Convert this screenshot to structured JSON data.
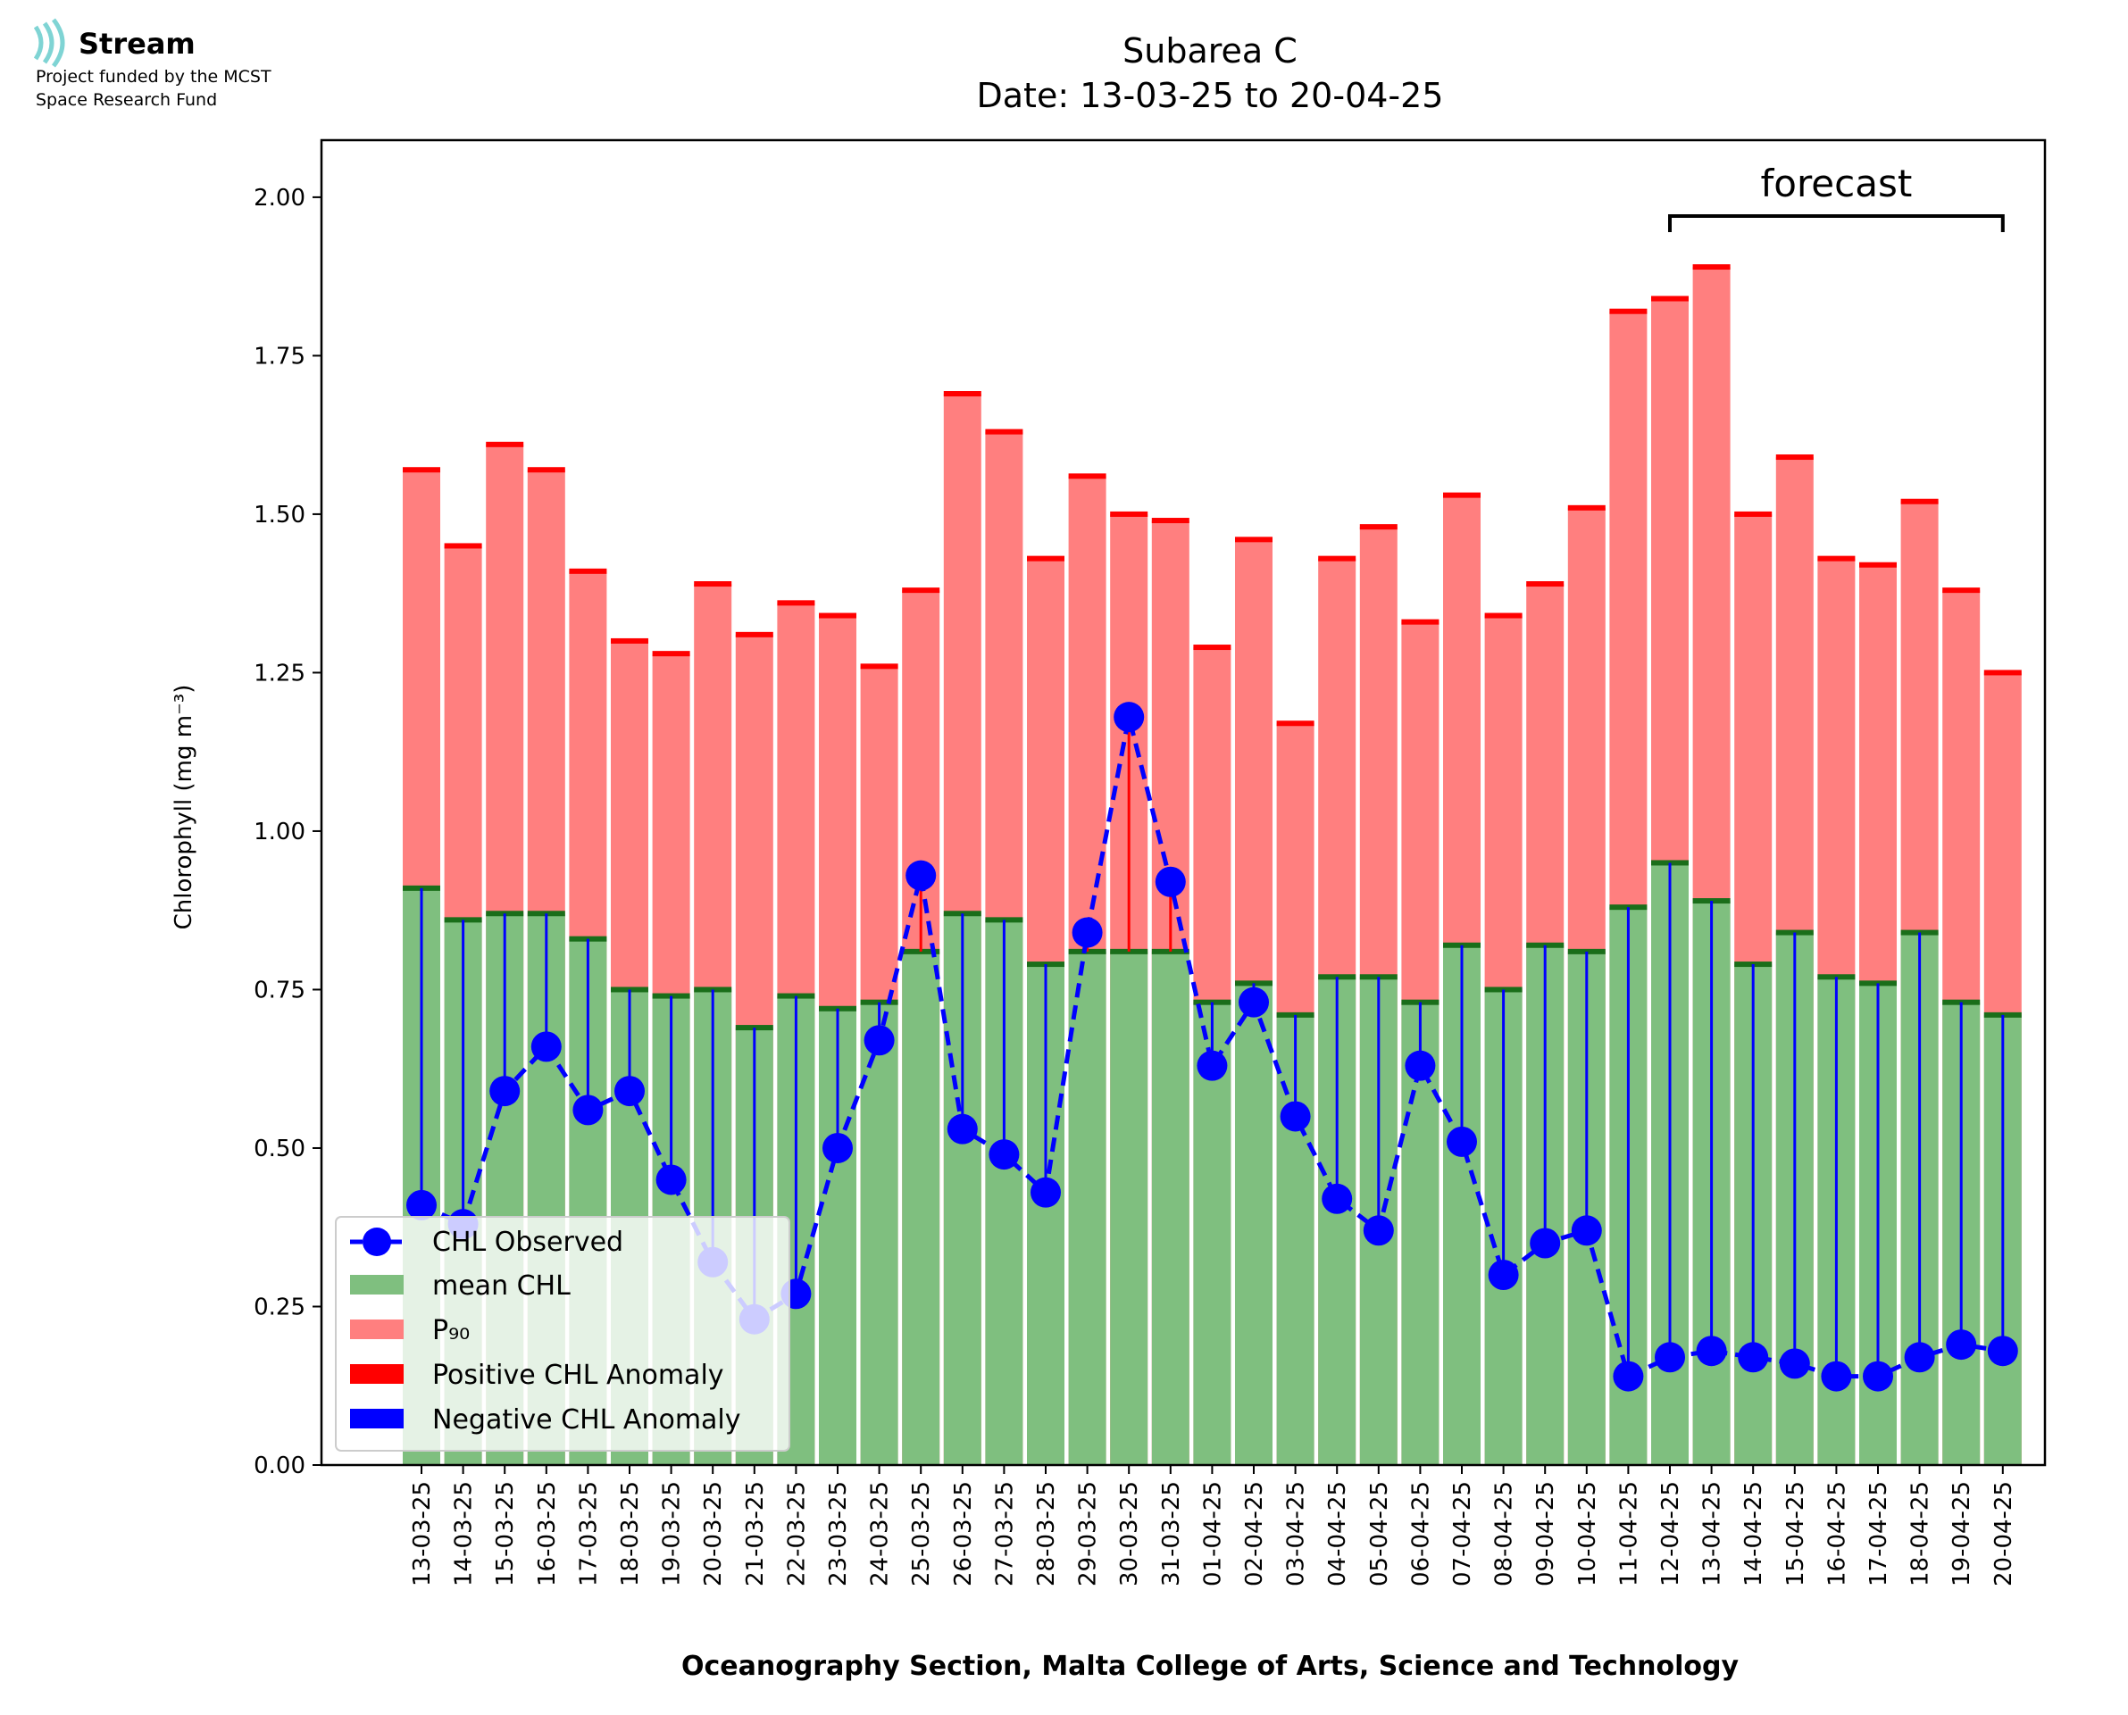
{
  "logo": {
    "name": "Stream",
    "line1": "Project funded by the MCST",
    "line2": "Space Research Fund"
  },
  "chart_data": {
    "type": "bar",
    "title": "Subarea C",
    "subtitle": "Date: 13-03-25 to 20-04-25",
    "xlabel": "Oceanography Section, Malta College of Arts, Science and Technology",
    "ylabel": "Chlorophyll (mg m⁻³)",
    "ylim": [
      0,
      2.09
    ],
    "yticks": [
      "0.00",
      "0.25",
      "0.50",
      "0.75",
      "1.00",
      "1.25",
      "1.50",
      "1.75",
      "2.00"
    ],
    "grid": false,
    "legend_placement": "lower-left",
    "annotation": "forecast",
    "forecast_start": "12-04-25",
    "forecast_end": "20-04-25",
    "categories": [
      "13-03-25",
      "14-03-25",
      "15-03-25",
      "16-03-25",
      "17-03-25",
      "18-03-25",
      "19-03-25",
      "20-03-25",
      "21-03-25",
      "22-03-25",
      "23-03-25",
      "24-03-25",
      "25-03-25",
      "26-03-25",
      "27-03-25",
      "28-03-25",
      "29-03-25",
      "30-03-25",
      "31-03-25",
      "01-04-25",
      "02-04-25",
      "03-04-25",
      "04-04-25",
      "05-04-25",
      "06-04-25",
      "07-04-25",
      "08-04-25",
      "09-04-25",
      "10-04-25",
      "11-04-25",
      "12-04-25",
      "13-04-25",
      "14-04-25",
      "15-04-25",
      "16-04-25",
      "17-04-25",
      "18-04-25",
      "19-04-25",
      "20-04-25"
    ],
    "series": [
      {
        "name": "CHL Observed",
        "color": "#0000ff",
        "values": [
          0.41,
          0.38,
          0.59,
          0.66,
          0.56,
          0.59,
          0.45,
          0.32,
          0.23,
          0.27,
          0.5,
          0.67,
          0.93,
          0.53,
          0.49,
          0.43,
          0.84,
          1.18,
          0.92,
          0.63,
          0.73,
          0.55,
          0.42,
          0.37,
          0.63,
          0.51,
          0.3,
          0.35,
          0.37,
          0.14,
          0.17,
          0.18,
          0.17,
          0.16,
          0.14,
          0.14,
          0.17,
          0.19,
          0.18
        ]
      },
      {
        "name": "mean CHL",
        "color": "#7fbf7f",
        "values": [
          0.91,
          0.86,
          0.87,
          0.87,
          0.83,
          0.75,
          0.74,
          0.75,
          0.69,
          0.74,
          0.72,
          0.73,
          0.81,
          0.87,
          0.86,
          0.79,
          0.81,
          0.81,
          0.81,
          0.73,
          0.76,
          0.71,
          0.77,
          0.77,
          0.73,
          0.82,
          0.75,
          0.82,
          0.81,
          0.88,
          0.95,
          0.89,
          0.79,
          0.84,
          0.77,
          0.76,
          0.84,
          0.73,
          0.71
        ]
      },
      {
        "name": "P₉₀",
        "color": "#ff7f7f",
        "values": [
          1.57,
          1.45,
          1.61,
          1.57,
          1.41,
          1.3,
          1.28,
          1.39,
          1.31,
          1.36,
          1.34,
          1.26,
          1.38,
          1.69,
          1.63,
          1.43,
          1.56,
          1.5,
          1.49,
          1.29,
          1.46,
          1.17,
          1.43,
          1.48,
          1.33,
          1.53,
          1.34,
          1.39,
          1.51,
          1.82,
          1.84,
          1.89,
          1.5,
          1.59,
          1.43,
          1.42,
          1.52,
          1.38,
          1.25
        ]
      },
      {
        "name": "Positive CHL Anomaly",
        "color": "#ff0000"
      },
      {
        "name": "Negative CHL Anomaly",
        "color": "#0000ff"
      }
    ],
    "colors": {
      "mean_bar": "#7fbf7f",
      "mean_cap": "#1a6e1a",
      "p90_bar": "#ff7f7f",
      "p90_cap": "#ff0000",
      "observed": "#0000ff",
      "positive_anomaly": "#ff0000",
      "negative_anomaly": "#0000ff",
      "logo_accent": "#7fd4d4"
    }
  }
}
